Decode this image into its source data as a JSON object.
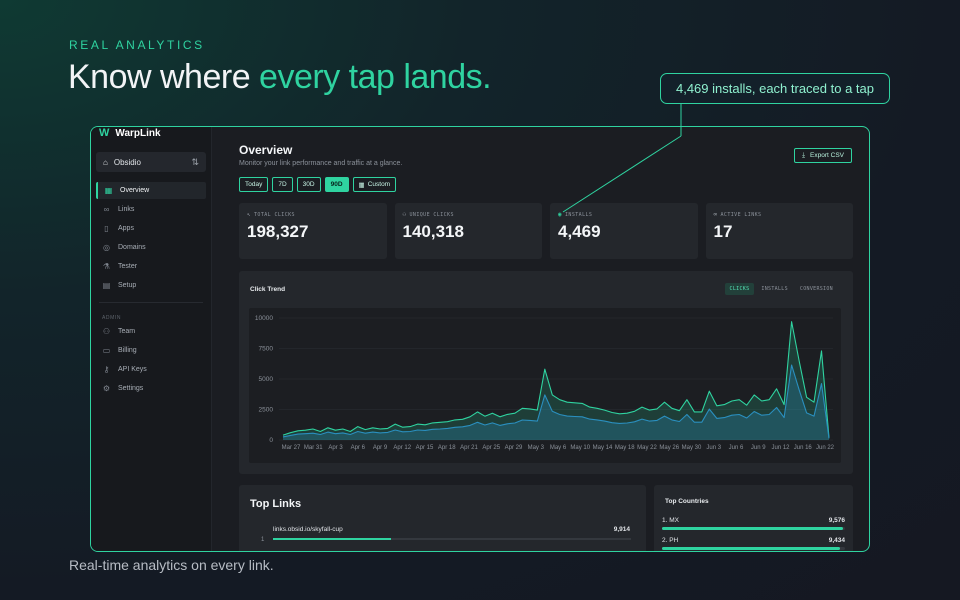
{
  "hero": {
    "eyebrow": "REAL ANALYTICS",
    "headline_start": "Know where ",
    "headline_accent": "every tap lands.",
    "footnote": "Real-time analytics on every link.",
    "callout": "4,469 installs, each traced to a tap"
  },
  "colors": {
    "accent": "#2fd3a0",
    "installs": "#2a8fbf"
  },
  "app": {
    "brand_logo": "W",
    "brand_name": "WarpLink",
    "workspace": "Obsidio",
    "nav": [
      {
        "label": "Overview",
        "icon": "layout-icon"
      },
      {
        "label": "Links",
        "icon": "link-icon"
      },
      {
        "label": "Apps",
        "icon": "phone-icon"
      },
      {
        "label": "Domains",
        "icon": "globe-icon"
      },
      {
        "label": "Tester",
        "icon": "flask-icon"
      },
      {
        "label": "Setup",
        "icon": "doc-icon"
      }
    ],
    "admin_label": "ADMIN",
    "admin_nav": [
      {
        "label": "Team",
        "icon": "team-icon"
      },
      {
        "label": "Billing",
        "icon": "card-icon"
      },
      {
        "label": "API Keys",
        "icon": "key-icon"
      },
      {
        "label": "Settings",
        "icon": "gear-icon"
      }
    ]
  },
  "overview": {
    "title": "Overview",
    "subtitle": "Monitor your link performance and traffic at a glance.",
    "export_label": "Export CSV",
    "ranges": [
      "Today",
      "7D",
      "30D",
      "90D",
      "Custom"
    ],
    "selected_range": "90D",
    "stats": [
      {
        "label": "TOTAL CLICKS",
        "value": "198,327"
      },
      {
        "label": "UNIQUE CLICKS",
        "value": "140,318"
      },
      {
        "label": "INSTALLS",
        "value": "4,469"
      },
      {
        "label": "ACTIVE LINKS",
        "value": "17"
      }
    ]
  },
  "trend": {
    "title": "Click Trend",
    "tabs": [
      "CLICKS",
      "INSTALLS",
      "CONVERSION"
    ],
    "selected_tab": "CLICKS"
  },
  "chart_data": {
    "type": "area",
    "title": "Click Trend",
    "ylim": [
      0,
      10000
    ],
    "yticks": [
      0,
      2500,
      5000,
      7500,
      10000
    ],
    "xticks": [
      "Mar 27",
      "Mar 31",
      "Apr 3",
      "Apr 6",
      "Apr 9",
      "Apr 12",
      "Apr 15",
      "Apr 18",
      "Apr 21",
      "Apr 25",
      "Apr 29",
      "May 3",
      "May 6",
      "May 10",
      "May 14",
      "May 18",
      "May 22",
      "May 26",
      "May 30",
      "Jun 3",
      "Jun 6",
      "Jun 9",
      "Jun 12",
      "Jun 16",
      "Jun 22"
    ],
    "series": [
      {
        "values": [
          400,
          600,
          750,
          800,
          900,
          700,
          1000,
          800,
          900,
          700,
          1100,
          850,
          1000,
          900,
          950,
          1300,
          1050,
          1100,
          1300,
          1250,
          1400,
          1450,
          1500,
          1650,
          1700,
          1900,
          2300,
          1950,
          2200,
          1900,
          2100,
          2200,
          2600,
          2550,
          2450,
          5800,
          3700,
          3300,
          3100,
          3050,
          3000,
          2700,
          2600,
          2450,
          2250,
          2150,
          2200,
          2350,
          2700,
          2450,
          2550,
          3100,
          2600,
          2400,
          3300,
          2300,
          2300,
          4000,
          2800,
          2900,
          3200,
          3300,
          2850,
          3700,
          3200,
          3300,
          4200,
          2900,
          9700,
          6500,
          3500,
          3100,
          7300,
          200
        ]
      },
      {
        "values": [
          250,
          380,
          480,
          520,
          560,
          450,
          650,
          520,
          580,
          450,
          700,
          560,
          650,
          580,
          620,
          820,
          670,
          700,
          820,
          790,
          880,
          900,
          950,
          1040,
          1080,
          1200,
          1450,
          1230,
          1400,
          1200,
          1330,
          1390,
          1640,
          1610,
          1550,
          3700,
          2350,
          2090,
          1960,
          1930,
          1900,
          1710,
          1650,
          1550,
          1420,
          1360,
          1390,
          1490,
          1710,
          1550,
          1610,
          1960,
          1650,
          1520,
          2090,
          1460,
          1460,
          2530,
          1770,
          1840,
          2030,
          2090,
          1800,
          2340,
          2030,
          2090,
          2660,
          1840,
          6150,
          4120,
          2220,
          1960,
          4620,
          130
        ]
      }
    ]
  },
  "top_links": {
    "title": "Top Links",
    "items": [
      {
        "rank": "1",
        "url": "links.obsid.io/skyfall-cup",
        "count": "9,914",
        "share": 0.33
      }
    ]
  },
  "top_countries": {
    "title": "Top Countries",
    "items": [
      {
        "label": "1. MX",
        "count": "9,576",
        "share": 0.99
      },
      {
        "label": "2. PH",
        "count": "9,434",
        "share": 0.97
      }
    ]
  }
}
